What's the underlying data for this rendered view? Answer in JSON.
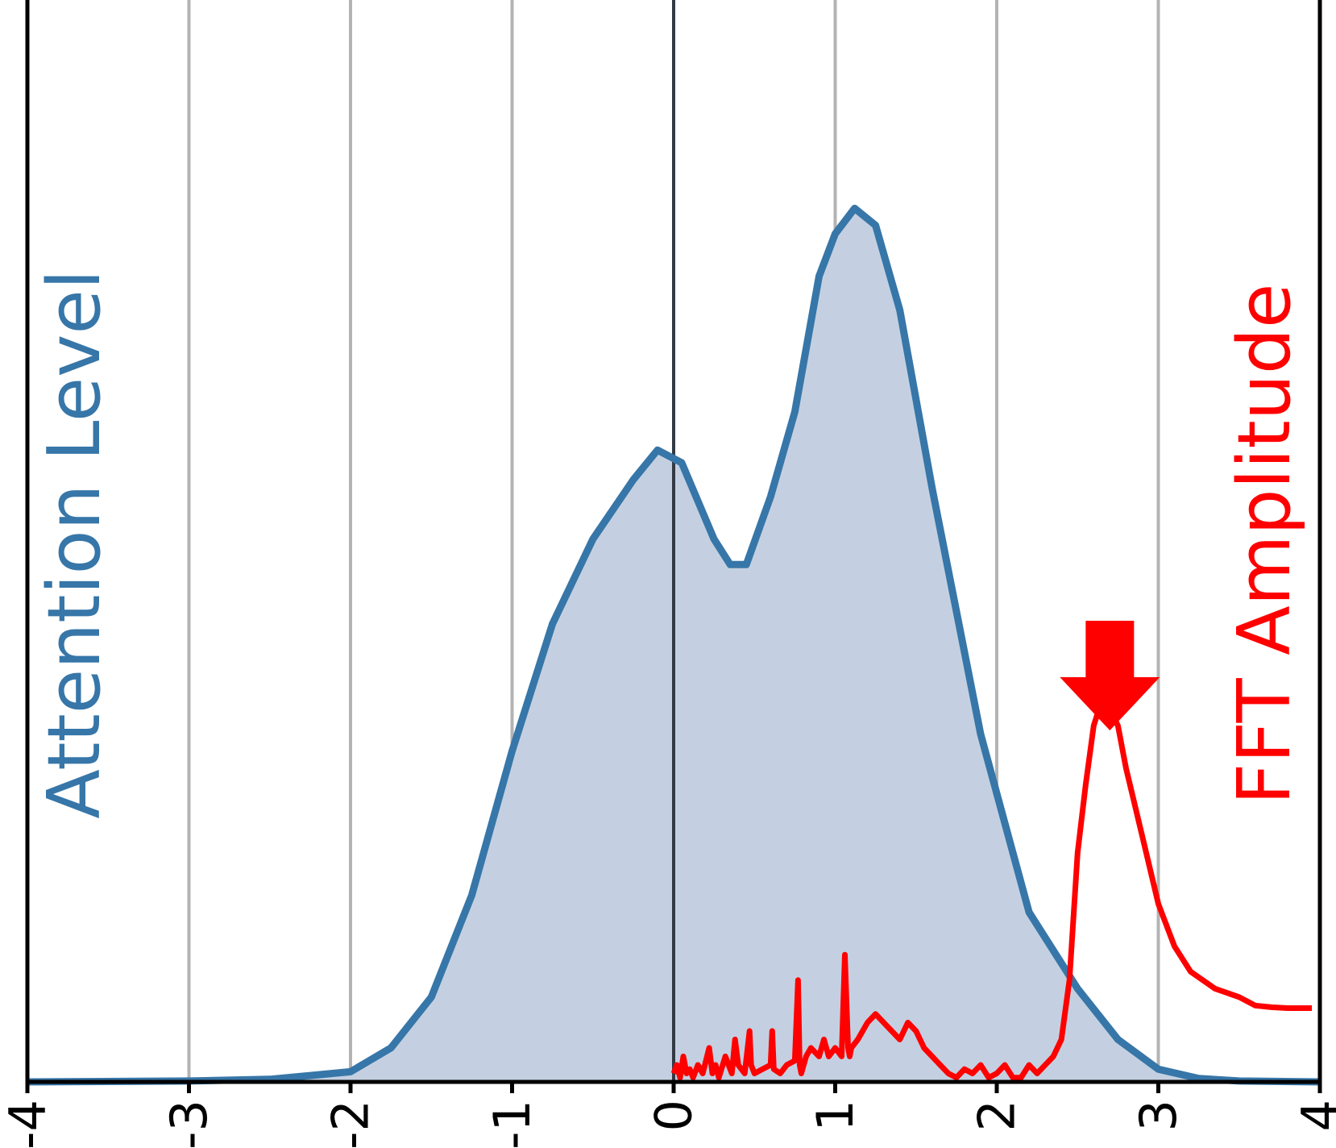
{
  "chart_data": {
    "type": "area",
    "title": "",
    "xlabel": "",
    "ylabel": "",
    "xlim": [
      -4,
      4
    ],
    "ylim": [
      0,
      1
    ],
    "grid": true,
    "x_ticks": [
      "-4",
      "-3",
      "-2",
      "-1",
      "0",
      "1",
      "2",
      "3",
      "4"
    ],
    "zero_line": 0,
    "annotations": {
      "arrow_x": 2.7,
      "arrow_direction": "down"
    },
    "series": [
      {
        "name": "Attention Level",
        "style": "filled-area",
        "color": "#3776a8",
        "fill": "#c4d0e1",
        "x": [
          -4,
          -3,
          -2.5,
          -2,
          -1.75,
          -1.5,
          -1.25,
          -1,
          -0.75,
          -0.5,
          -0.25,
          -0.1,
          0.05,
          0.25,
          0.35,
          0.45,
          0.6,
          0.75,
          0.9,
          1.0,
          1.12,
          1.25,
          1.4,
          1.6,
          1.9,
          2.2,
          2.5,
          2.75,
          3.0,
          3.25,
          3.5,
          4
        ],
        "y": [
          0,
          0.001,
          0.003,
          0.012,
          0.04,
          0.1,
          0.22,
          0.39,
          0.54,
          0.64,
          0.71,
          0.745,
          0.73,
          0.64,
          0.61,
          0.61,
          0.69,
          0.79,
          0.95,
          1.0,
          1.03,
          1.01,
          0.91,
          0.7,
          0.41,
          0.2,
          0.11,
          0.05,
          0.015,
          0.004,
          0.001,
          0
        ]
      },
      {
        "name": "FFT Amplitude",
        "style": "line",
        "color": "#ff0000",
        "x": [
          0,
          0.02,
          0.04,
          0.06,
          0.08,
          0.1,
          0.12,
          0.15,
          0.18,
          0.22,
          0.24,
          0.26,
          0.28,
          0.32,
          0.36,
          0.38,
          0.4,
          0.44,
          0.47,
          0.48,
          0.5,
          0.55,
          0.6,
          0.61,
          0.62,
          0.66,
          0.7,
          0.75,
          0.77,
          0.78,
          0.79,
          0.82,
          0.85,
          0.9,
          0.93,
          0.96,
          1.0,
          1.04,
          1.06,
          1.08,
          1.09,
          1.1,
          1.14,
          1.2,
          1.25,
          1.3,
          1.35,
          1.4,
          1.45,
          1.5,
          1.55,
          1.6,
          1.65,
          1.7,
          1.75,
          1.8,
          1.85,
          1.9,
          1.95,
          2.0,
          2.05,
          2.1,
          2.15,
          2.2,
          2.25,
          2.3,
          2.35,
          2.4,
          2.45,
          2.5,
          2.55,
          2.6,
          2.65,
          2.7,
          2.75,
          2.8,
          2.9,
          3.0,
          3.1,
          3.2,
          3.35,
          3.5,
          3.6,
          3.7,
          3.8,
          3.95
        ],
        "y": [
          0.01,
          0.02,
          0.005,
          0.03,
          0.01,
          0.015,
          0.005,
          0.02,
          0.01,
          0.04,
          0.01,
          0.02,
          0.005,
          0.03,
          0.01,
          0.05,
          0.02,
          0.01,
          0.06,
          0.02,
          0.01,
          0.015,
          0.02,
          0.06,
          0.015,
          0.01,
          0.02,
          0.025,
          0.12,
          0.02,
          0.01,
          0.03,
          0.04,
          0.03,
          0.05,
          0.03,
          0.04,
          0.03,
          0.15,
          0.04,
          0.03,
          0.04,
          0.05,
          0.07,
          0.08,
          0.07,
          0.06,
          0.05,
          0.07,
          0.06,
          0.04,
          0.03,
          0.02,
          0.01,
          0.005,
          0.015,
          0.01,
          0.02,
          0.005,
          0.01,
          0.02,
          0.005,
          0.005,
          0.02,
          0.01,
          0.02,
          0.03,
          0.05,
          0.12,
          0.27,
          0.35,
          0.42,
          0.45,
          0.44,
          0.42,
          0.37,
          0.29,
          0.21,
          0.16,
          0.13,
          0.11,
          0.1,
          0.09,
          0.088,
          0.087,
          0.087
        ]
      }
    ]
  }
}
